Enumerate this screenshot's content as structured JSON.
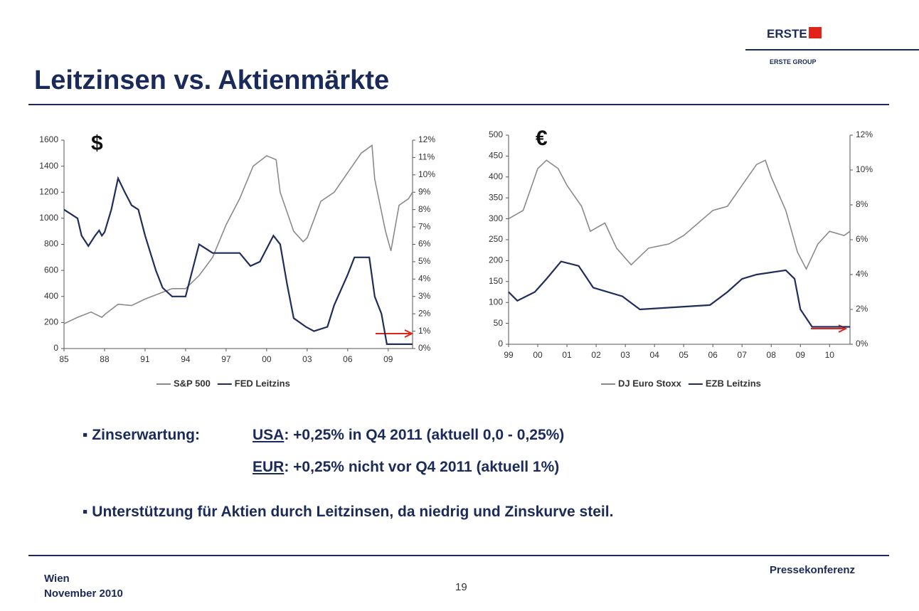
{
  "logo": {
    "name": "ERSTE",
    "group": "ERSTE GROUP"
  },
  "title": "Leitzinsen vs. Aktienmärkte",
  "chart_data": [
    {
      "type": "line",
      "annotation": "$",
      "xlim": [
        1985,
        2010.8
      ],
      "xticks": [
        {
          "value": 1985,
          "label": "85"
        },
        {
          "value": 1988,
          "label": "88"
        },
        {
          "value": 1991,
          "label": "91"
        },
        {
          "value": 1994,
          "label": "94"
        },
        {
          "value": 1997,
          "label": "97"
        },
        {
          "value": 2000,
          "label": "00"
        },
        {
          "value": 2003,
          "label": "03"
        },
        {
          "value": 2006,
          "label": "06"
        },
        {
          "value": 2009,
          "label": "09"
        }
      ],
      "ylim": [
        0,
        1600
      ],
      "yticks": [
        0,
        200,
        400,
        600,
        800,
        1000,
        1200,
        1400,
        1600
      ],
      "y2lim": [
        0,
        12
      ],
      "y2ticks": [
        {
          "value": 0,
          "label": "0%"
        },
        {
          "value": 1,
          "label": "1%"
        },
        {
          "value": 2,
          "label": "2%"
        },
        {
          "value": 3,
          "label": "3%"
        },
        {
          "value": 4,
          "label": "4%"
        },
        {
          "value": 5,
          "label": "5%"
        },
        {
          "value": 6,
          "label": "6%"
        },
        {
          "value": 7,
          "label": "7%"
        },
        {
          "value": 8,
          "label": "8%"
        },
        {
          "value": 9,
          "label": "9%"
        },
        {
          "value": 10,
          "label": "10%"
        },
        {
          "value": 11,
          "label": "11%"
        },
        {
          "value": 12,
          "label": "12%"
        }
      ],
      "series": [
        {
          "name": "S&P 500",
          "color": "#8a8a8a",
          "x": [
            1985,
            1986,
            1987,
            1987.8,
            1988,
            1989,
            1990,
            1991,
            1992,
            1993,
            1994,
            1995,
            1996,
            1997,
            1998,
            1999,
            2000,
            2000.7,
            2001,
            2002,
            2002.7,
            2003,
            2004,
            2005,
            2006,
            2007,
            2007.8,
            2008,
            2008.8,
            2009.2,
            2009.8,
            2010.5,
            2010.8
          ],
          "values": [
            190,
            240,
            280,
            240,
            260,
            340,
            330,
            380,
            420,
            460,
            460,
            560,
            700,
            950,
            1150,
            1400,
            1480,
            1450,
            1200,
            900,
            820,
            850,
            1130,
            1200,
            1350,
            1500,
            1560,
            1300,
            900,
            750,
            1100,
            1150,
            1200
          ]
        },
        {
          "name": "FED Leitzins",
          "color": "#1f2d5c",
          "axis": "y2",
          "x": [
            1985,
            1985.5,
            1986,
            1986.3,
            1986.8,
            1987.3,
            1987.6,
            1987.8,
            1988,
            1988.5,
            1989,
            1989.5,
            1990,
            1990.5,
            1991,
            1991.8,
            1992.3,
            1993,
            1994,
            1994.5,
            1995,
            1995.5,
            1996,
            1997,
            1998,
            1998.8,
            1999.5,
            2000,
            2000.5,
            2001,
            2001.5,
            2002,
            2002.9,
            2003.5,
            2004.5,
            2005,
            2006,
            2006.5,
            2007.6,
            2008,
            2008.5,
            2008.9,
            2010.8
          ],
          "values": [
            8.0,
            7.75,
            7.5,
            6.5,
            5.9,
            6.5,
            6.8,
            6.5,
            6.7,
            8,
            9.8,
            9.0,
            8.25,
            8.0,
            6.5,
            4.5,
            3.5,
            3.0,
            3.0,
            4.5,
            6.0,
            5.75,
            5.5,
            5.5,
            5.5,
            4.75,
            5.0,
            5.75,
            6.5,
            6.0,
            3.75,
            1.75,
            1.25,
            1.0,
            1.25,
            2.5,
            4.25,
            5.25,
            5.25,
            3.0,
            2.0,
            0.25,
            0.25
          ]
        }
      ]
    },
    {
      "type": "line",
      "annotation": "€",
      "xlim": [
        1999,
        2010.7
      ],
      "xticks": [
        {
          "value": 1999,
          "label": "99"
        },
        {
          "value": 2000,
          "label": "00"
        },
        {
          "value": 2001,
          "label": "01"
        },
        {
          "value": 2002,
          "label": "02"
        },
        {
          "value": 2003,
          "label": "03"
        },
        {
          "value": 2004,
          "label": "04"
        },
        {
          "value": 2005,
          "label": "05"
        },
        {
          "value": 2006,
          "label": "06"
        },
        {
          "value": 2007,
          "label": "07"
        },
        {
          "value": 2008,
          "label": "08"
        },
        {
          "value": 2009,
          "label": "09"
        },
        {
          "value": 2010,
          "label": "10"
        }
      ],
      "ylim": [
        0,
        500
      ],
      "yticks": [
        0,
        50,
        100,
        150,
        200,
        250,
        300,
        350,
        400,
        450,
        500
      ],
      "y2lim": [
        0,
        12
      ],
      "y2ticks": [
        {
          "value": 0,
          "label": "0%"
        },
        {
          "value": 2,
          "label": "2%"
        },
        {
          "value": 4,
          "label": "4%"
        },
        {
          "value": 6,
          "label": "6%"
        },
        {
          "value": 8,
          "label": "8%"
        },
        {
          "value": 10,
          "label": "10%"
        },
        {
          "value": 12,
          "label": "12%"
        }
      ],
      "series": [
        {
          "name": "DJ Euro Stoxx",
          "color": "#8a8a8a",
          "x": [
            1999,
            1999.5,
            2000,
            2000.3,
            2000.7,
            2001,
            2001.5,
            2001.8,
            2002.3,
            2002.7,
            2003.2,
            2003.8,
            2004.5,
            2005,
            2005.5,
            2006,
            2006.5,
            2007,
            2007.5,
            2007.8,
            2008,
            2008.5,
            2008.9,
            2009.2,
            2009.6,
            2010,
            2010.5,
            2010.7
          ],
          "values": [
            300,
            320,
            420,
            440,
            420,
            380,
            330,
            270,
            290,
            230,
            190,
            230,
            240,
            260,
            290,
            320,
            330,
            380,
            430,
            440,
            400,
            320,
            220,
            180,
            240,
            270,
            260,
            270
          ]
        },
        {
          "name": "EZB Leitzins",
          "color": "#1f2d5c",
          "axis": "y2",
          "x": [
            1999,
            1999.3,
            1999.9,
            2000.3,
            2000.8,
            2001.4,
            2001.7,
            2001.9,
            2002.9,
            2003.5,
            2005.9,
            2006.5,
            2007,
            2007.5,
            2008.5,
            2008.8,
            2009,
            2009.4,
            2010.7
          ],
          "values": [
            3.0,
            2.5,
            3.0,
            3.75,
            4.75,
            4.5,
            3.75,
            3.25,
            2.75,
            2.0,
            2.25,
            3.0,
            3.75,
            4.0,
            4.25,
            3.75,
            2.0,
            1.0,
            1.0
          ]
        }
      ]
    }
  ],
  "bullets": [
    {
      "lead": "Zinserwartung:",
      "items": [
        {
          "region": "USA",
          "text": ": +0,25% in Q4 2011 (aktuell 0,0 - 0,25%)"
        },
        {
          "region": "EUR",
          "text": ": +0,25% nicht vor Q4 2011 (aktuell 1%)"
        }
      ]
    },
    {
      "lead": "Unterstützung für Aktien durch Leitzinsen, da niedrig und Zinskurve steil."
    }
  ],
  "footer": {
    "place": "Wien",
    "date": "November 2010",
    "page": "19",
    "event": "Pressekonferenz"
  }
}
